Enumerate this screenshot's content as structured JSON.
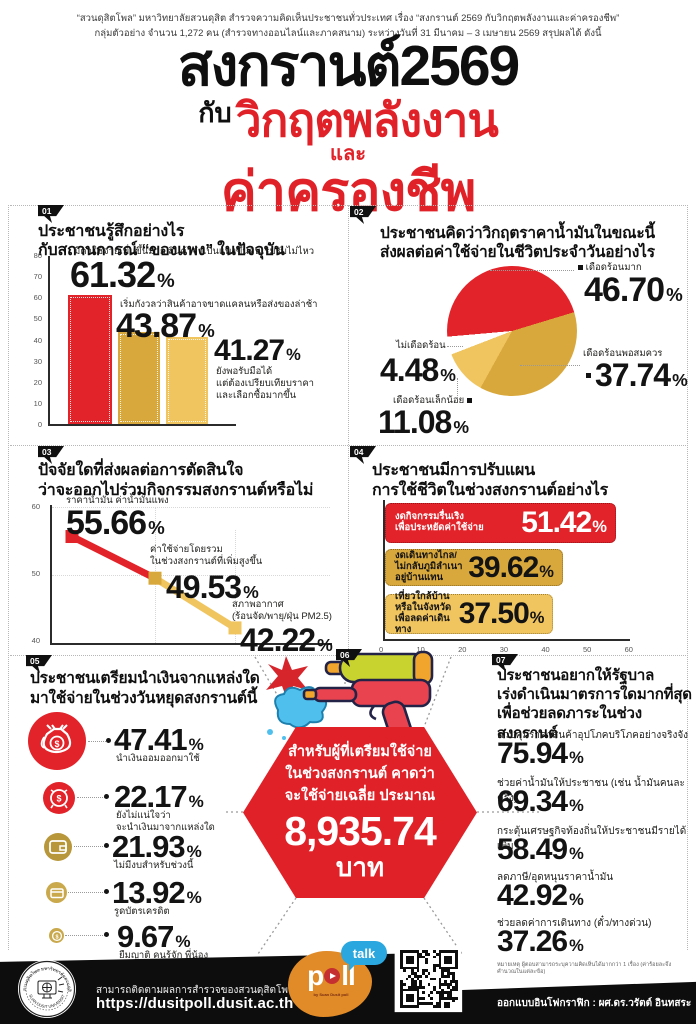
{
  "percent_sign": "%",
  "header": {
    "line1": "“สวนดุสิตโพล” มหาวิทยาลัยสวนดุสิต สำรวจความคิดเห็นประชาชนทั่วประเทศ  เรื่อง “สงกรานต์ 2569 กับวิกฤตพลังงานและค่าครองชีพ”",
    "line2": "กลุ่มตัวอย่าง จำนวน 1,272 คน  (สำรวจทางออนไลน์และภาคสนาม) ระหว่างวันที่ 31 มีนาคม –   3 เมษายน 2569  สรุปผลได้ ดังนี้"
  },
  "title": {
    "line1": "สงกรานต์2569",
    "with": "กับ",
    "crisis": "วิกฤตพลังงาน",
    "and": "และ",
    "cost": "ค่าครองชีพ",
    "accent_color": "#e02128"
  },
  "colors": {
    "red": "#e2232a",
    "gold": "#d9a83c",
    "light_yellow": "#f0c55f",
    "black": "#111111",
    "blue": "#2ba7df",
    "orange": "#e08a28"
  },
  "average_spend": {
    "section_no": "06",
    "lines": [
      "สำหรับผู้ที่เตรียมใช้จ่าย",
      "ในช่วงสงกรานต์ คาดว่า",
      "จะใช้จ่ายเฉลี่ย ประมาณ"
    ],
    "amount": "8,935.74",
    "unit": "บาท"
  },
  "footer": {
    "follow": "สามารถติดตามผลการสำรวจของสวนดุสิตโพล ได้ที่",
    "url": "https://dusitpoll.dusit.ac.th",
    "designer": "ออกแบบอินโฟกราฟิก : ผศ.ดร.วรัตต์ อินทสระ",
    "poll": "p ll",
    "talk": "talk",
    "poll_by": "by Suan Dusit poll",
    "seal_top": "สวนดุสิตโพล มหาวิทยาลัยสวนดุสิต",
    "seal_bottom": "SUAN DUSIT UNIVERSITY",
    "note": "หมายเหตุ  ผู้ตอบสามารถระบุความคิดเห็นได้มากกว่า 1 เรื่อง (ค่าร้อยละจึงคำนวณในแต่ละข้อ)"
  },
  "chart_data": [
    {
      "id": "q1",
      "type": "bar",
      "section_no": "01",
      "title_lines": [
        "ประชาชนรู้สึกอย่างไร",
        "กับสถานการณ์ “ของแพง” ในปัจจุบัน"
      ],
      "ymin": 0,
      "ymax": 80,
      "yticks": [
        "80",
        "70",
        "60",
        "50",
        "40",
        "30",
        "20",
        "10",
        "0"
      ],
      "categories": [
        "มีค่าใช้จ่ายเพิ่มขึ้นมาก สินค้าจำเป็นแพงขึ้นจนเริ่มรับไม่ไหว",
        "เริ่มกังวลว่าสินค้าอาจขาดแคลนหรือส่งของล่าช้า",
        "ยังพอรับมือได้\nแต่ต้องเปรียบเทียบราคา\nและเลือกซื้อมากขึ้น"
      ],
      "values": [
        61.32,
        43.87,
        41.27
      ],
      "display": [
        "61.32",
        "43.87",
        "41.27"
      ],
      "colors": [
        "#e2232a",
        "#d9a83c",
        "#f0c55f"
      ]
    },
    {
      "id": "q2",
      "type": "pie",
      "section_no": "02",
      "title_lines": [
        "ประชาชนคิดว่าวิกฤตราคาน้ำมันในขณะนี้",
        "ส่งผลต่อค่าใช้จ่ายในชีวิตประจำวันอย่างไร"
      ],
      "labels": [
        "เดือดร้อนมาก",
        "เดือดร้อนพอสมควร",
        "เดือดร้อนเล็กน้อย",
        "ไม่เดือดร้อน"
      ],
      "values": [
        46.7,
        37.74,
        11.08,
        4.48
      ],
      "display": [
        "46.70",
        "37.74",
        "11.08",
        "4.48"
      ],
      "colors": [
        "#e2232a",
        "#d9a83c",
        "#f0c55f",
        "#ffffff"
      ],
      "start_angle_deg": 265
    },
    {
      "id": "q3",
      "type": "line",
      "section_no": "03",
      "title_lines": [
        "ปัจจัยใดที่ส่งผลต่อการตัดสินใจ",
        "ว่าจะออกไปร่วมกิจกรรมสงกรานต์หรือไม่"
      ],
      "ymin": 40,
      "ymax": 60,
      "yticks": [
        "60",
        "50",
        "40"
      ],
      "categories": [
        "ราคาน้ำมัน ค่าน้ำมันแพง",
        "ค่าใช้จ่ายโดยรวม\nในช่วงสงกรานต์ที่เพิ่มสูงขึ้น",
        "สภาพอากาศ\n(ร้อนจัด/พายุ/ฝุ่น PM2.5)"
      ],
      "values": [
        55.66,
        49.53,
        42.22
      ],
      "display": [
        "55.66",
        "49.53",
        "42.22"
      ],
      "segment_colors": [
        "#e2232a",
        "#f0c55f"
      ],
      "marker_colors": [
        "#e2232a",
        "#d9a83c",
        "#f0c55f"
      ]
    },
    {
      "id": "q4",
      "type": "bar",
      "orientation": "horizontal",
      "section_no": "04",
      "title_lines": [
        "ประชาชนมีการปรับแผน",
        "การใช้ชีวิตในช่วงสงกรานต์อย่างไร"
      ],
      "xmax": 60,
      "xticks": [
        "0",
        "10",
        "20",
        "30",
        "40",
        "50",
        "60"
      ],
      "categories": [
        "งดกิจกรรมรื่นเริง\nเพื่อประหยัดค่าใช้จ่าย",
        "งดเดินทางไกล/\nไม่กลับภูมิลำเนาอยู่บ้านแทน",
        "เที่ยวใกล้บ้าน\nหรือในจังหวัด\nเพื่อลดค่าเดินทาง"
      ],
      "values": [
        51.42,
        39.62,
        37.5
      ],
      "display": [
        "51.42",
        "39.62",
        "37.50"
      ],
      "colors": [
        "#e2232a",
        "#d9a83c",
        "#f0c55f"
      ],
      "label_colors": [
        "#ffffff",
        "#131313",
        "#131313"
      ]
    },
    {
      "id": "q5",
      "type": "table",
      "section_no": "05",
      "title_lines": [
        "ประชาชนเตรียมนำเงินจากแหล่งใด",
        "มาใช้จ่ายในช่วงวันหยุดสงกรานต์นี้"
      ],
      "rows": [
        {
          "label": "นำเงินออมออกมาใช้",
          "value": 47.41,
          "display": "47.41",
          "icon": "money-bags"
        },
        {
          "label": "ยังไม่แน่ใจว่า\nจะนำเงินมาจากแหล่งใด",
          "value": 22.17,
          "display": "22.17",
          "icon": "alarm-clock"
        },
        {
          "label": "ไม่มีงบสำหรับช่วงนี้",
          "value": 21.93,
          "display": "21.93",
          "icon": "wallet"
        },
        {
          "label": "รูดบัตรเครดิต",
          "value": 13.92,
          "display": "13.92",
          "icon": "credit-card"
        },
        {
          "label": "ยืมญาติ คนรู้จัก พี่น้อง",
          "value": 9.67,
          "display": "9.67",
          "icon": "coin"
        }
      ]
    },
    {
      "id": "q7",
      "type": "table",
      "section_no": "07",
      "title_lines": [
        "ประชาชนอยากให้รัฐบาล",
        "เร่งดำเนินมาตรการใดมากที่สุด",
        "เพื่อช่วยลดภาระในช่วงสงกรานต์"
      ],
      "rows": [
        {
          "label": "ควบคุมราคาสินค้าอุปโภคบริโภคอย่างจริงจัง",
          "value": 75.94,
          "display": "75.94"
        },
        {
          "label": "ช่วยค่าน้ำมันให้ประชาชน (เช่น น้ำมันคนละครึ่ง)",
          "value": 69.34,
          "display": "69.34"
        },
        {
          "label": "กระตุ้นเศรษฐกิจท้องถิ่นให้ประชาชนมีรายได้เพิ่ม",
          "value": 58.49,
          "display": "58.49"
        },
        {
          "label": "ลดภาษี/อุดหนุนราคาน้ำมัน",
          "value": 42.92,
          "display": "42.92"
        },
        {
          "label": "ช่วยลดค่าการเดินทาง (ตั๋ว/ทางด่วน)",
          "value": 37.26,
          "display": "37.26"
        }
      ]
    }
  ]
}
